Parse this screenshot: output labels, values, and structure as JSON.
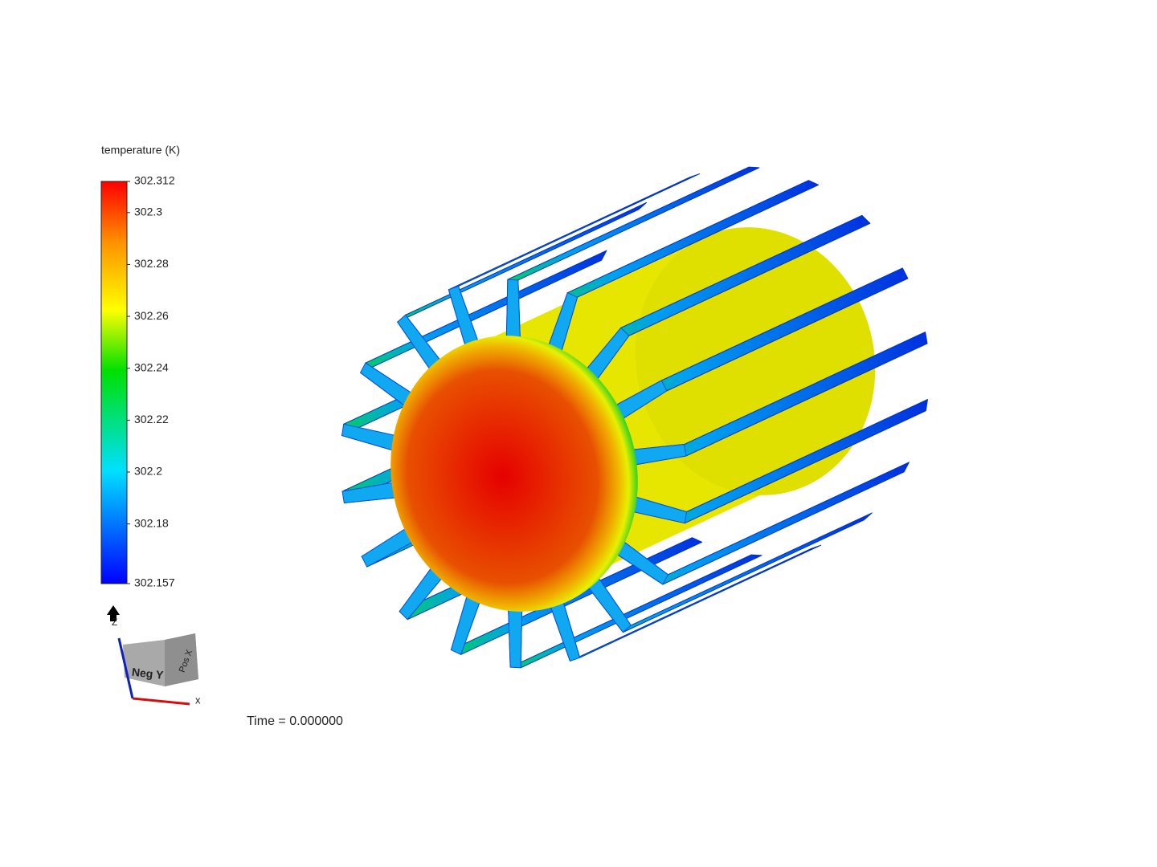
{
  "colorbar": {
    "title": "temperature (K)",
    "range": [
      302.157,
      302.312
    ],
    "ticks": [
      302.312,
      302.3,
      302.28,
      302.26,
      302.24,
      302.22,
      302.2,
      302.18,
      302.157
    ]
  },
  "orientation": {
    "face_front": "Neg Y",
    "face_side": "Pos X",
    "axis_up": "Z",
    "axis_right": "X"
  },
  "time_label": "Time = 0.000000"
}
